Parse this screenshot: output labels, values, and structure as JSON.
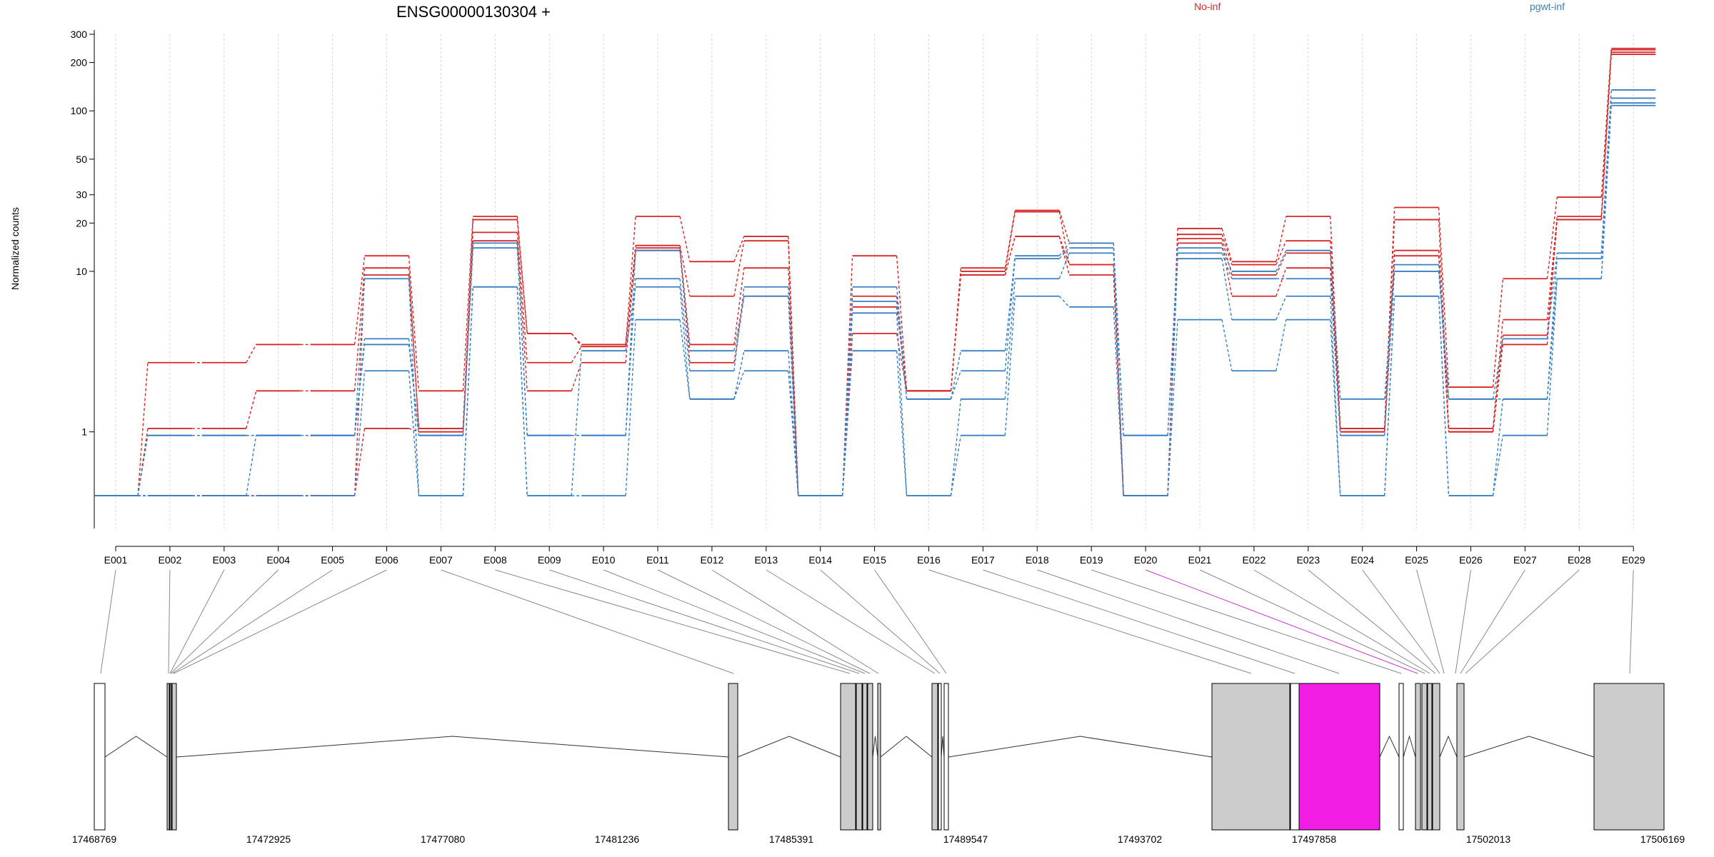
{
  "chart_data": {
    "type": "line",
    "title": "ENSG00000130304 +",
    "ylabel": "Normalized counts",
    "yscale": "log",
    "ylim": [
      0.25,
      300
    ],
    "y_ticks": [
      1,
      10,
      20,
      30,
      50,
      100,
      200,
      300
    ],
    "grid": "vertical dashed at exons",
    "legend": [
      {
        "name": "No-inf",
        "color": "#d62728"
      },
      {
        "name": "pgwt-inf",
        "color": "#3a7fc1"
      }
    ],
    "colors": {
      "no_inf": "#d62728",
      "pgwt_inf": "#3a7fc1",
      "highlight_exon": "#f21de3",
      "exon_fill": "#cccccc"
    },
    "categories": [
      "E001",
      "E002",
      "E003",
      "E004",
      "E005",
      "E006",
      "E007",
      "E008",
      "E009",
      "E010",
      "E011",
      "E012",
      "E013",
      "E014",
      "E015",
      "E016",
      "E017",
      "E018",
      "E019",
      "E020",
      "E021",
      "E022",
      "E023",
      "E024",
      "E025",
      "E026",
      "E027",
      "E028",
      "E029"
    ],
    "series": [
      {
        "group": "No-inf",
        "values": [
          0.4,
          2.7,
          2.7,
          3.5,
          3.5,
          12.5,
          1.8,
          22,
          4.1,
          3.5,
          22,
          11.5,
          16.5,
          0.4,
          12.5,
          1.8,
          10.5,
          24,
          15,
          0.4,
          18.5,
          11.5,
          22,
          1.05,
          25,
          1.9,
          9,
          29,
          245
        ]
      },
      {
        "group": "No-inf",
        "values": [
          0.4,
          1.05,
          1.05,
          1.8,
          1.8,
          10.5,
          1.05,
          21,
          4.1,
          3.4,
          14.5,
          7,
          15.5,
          0.4,
          7,
          1.8,
          10,
          23.5,
          11,
          0.4,
          17,
          11,
          15.5,
          1.05,
          21,
          1.05,
          5,
          22,
          240
        ]
      },
      {
        "group": "No-inf",
        "values": [
          0.4,
          0.4,
          0.4,
          0.4,
          0.4,
          9.5,
          1.05,
          17.5,
          2.7,
          3.4,
          14,
          3.5,
          10.5,
          0.4,
          6,
          1.8,
          9.5,
          16.5,
          11,
          0.4,
          16,
          9.5,
          13,
          1.0,
          13.5,
          1.0,
          4,
          21,
          232
        ]
      },
      {
        "group": "No-inf",
        "values": [
          0.4,
          0.4,
          0.4,
          0.4,
          0.4,
          1.05,
          1.0,
          15.5,
          1.8,
          2.7,
          13.5,
          2.7,
          7,
          0.4,
          4.1,
          1.8,
          9.5,
          16.5,
          9.5,
          0.4,
          15,
          7,
          10.5,
          1.0,
          12.5,
          1.0,
          3.5,
          21,
          225
        ]
      },
      {
        "group": "pgwt-inf",
        "values": [
          0.4,
          0.95,
          0.95,
          0.95,
          0.95,
          3.8,
          0.95,
          15,
          0.95,
          0.95,
          13.5,
          3.2,
          7,
          0.4,
          6.5,
          1.6,
          3.2,
          12.5,
          15,
          0.95,
          14,
          10,
          13.5,
          1.6,
          11,
          1.6,
          3.8,
          13,
          135
        ]
      },
      {
        "group": "pgwt-inf",
        "values": [
          0.4,
          0.95,
          0.95,
          0.95,
          0.95,
          3.5,
          0.95,
          14,
          0.95,
          0.95,
          9,
          2.4,
          8,
          0.4,
          8,
          1.6,
          2.4,
          12,
          14,
          0.95,
          13,
          9,
          9,
          0.95,
          10,
          1.6,
          1.6,
          12,
          120
        ]
      },
      {
        "group": "pgwt-inf",
        "values": [
          0.4,
          0.4,
          0.4,
          0.95,
          0.95,
          9,
          0.4,
          8,
          0.4,
          3.2,
          8,
          1.6,
          3.2,
          0.4,
          5.5,
          0.4,
          1.6,
          9,
          13,
          0.4,
          12,
          5,
          7,
          0.4,
          7,
          0.4,
          1.6,
          9,
          112
        ]
      },
      {
        "group": "pgwt-inf",
        "values": [
          0.4,
          0.4,
          0.4,
          0.4,
          0.4,
          2.4,
          0.4,
          8,
          0.4,
          0.4,
          5,
          1.6,
          2.4,
          0.4,
          3.2,
          0.4,
          0.95,
          7,
          6,
          0.4,
          5,
          2.4,
          5,
          0.4,
          7,
          0.4,
          0.95,
          9,
          108
        ]
      }
    ],
    "gene_model": {
      "genomic_ticks": [
        "17468769",
        "17472925",
        "17477080",
        "17481236",
        "17485391",
        "17489547",
        "17493702",
        "17497858",
        "17502013",
        "17506169"
      ],
      "highlighted_exon": "E020"
    }
  }
}
